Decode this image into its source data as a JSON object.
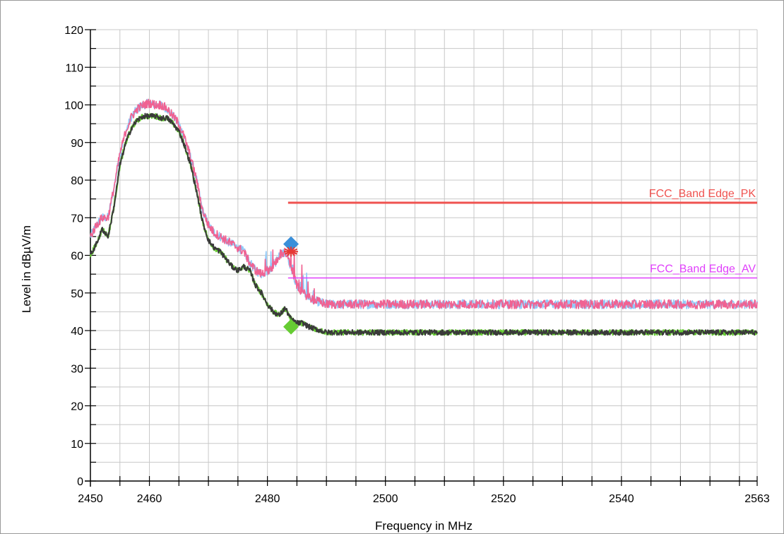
{
  "chart_data": {
    "type": "line",
    "title": "",
    "xlabel": "Frequency in MHz",
    "ylabel": "Level in dBµV/m",
    "xlim": [
      2450,
      2563
    ],
    "ylim": [
      0,
      120
    ],
    "x_ticks": [
      2450,
      2460,
      2480,
      2500,
      2520,
      2540,
      2563
    ],
    "y_ticks": [
      0,
      10,
      20,
      30,
      40,
      50,
      60,
      70,
      80,
      90,
      100,
      110,
      120
    ],
    "grid": true,
    "colors": {
      "pk_trace": "#f06292",
      "pk_trace_alt": "#90caf9",
      "av_trace": "#3a3a3a",
      "av_trace_alt": "#66cc33",
      "pk_limit": "#ef5350",
      "av_limit": "#e040fb",
      "grid": "#c8c8c8"
    },
    "limit_lines": [
      {
        "label": "FCC_Band Edge_PK",
        "x_start": 2483.5,
        "x_end": 2563,
        "y": 74,
        "color": "#ef5350"
      },
      {
        "label": "FCC_Band Edge_AV",
        "x_start": 2483.5,
        "x_end": 2563,
        "y": 54,
        "color": "#e040fb"
      }
    ],
    "markers": [
      {
        "shape": "diamond",
        "x": 2484,
        "y": 63,
        "color": "#3a8fd9"
      },
      {
        "shape": "star",
        "x": 2484,
        "y": 61,
        "color": "#e53935"
      },
      {
        "shape": "diamond",
        "x": 2484,
        "y": 41,
        "color": "#66cc33"
      }
    ],
    "series": [
      {
        "color": "#f06292",
        "noise": 1.2,
        "x": [
          2450,
          2451,
          2452,
          2453,
          2454,
          2455,
          2456,
          2457,
          2458,
          2459,
          2460,
          2461,
          2462,
          2463,
          2464,
          2465,
          2466,
          2467,
          2468,
          2469,
          2470,
          2471,
          2472,
          2473,
          2474,
          2475,
          2476,
          2477,
          2478,
          2479,
          2480,
          2481,
          2482,
          2483,
          2484,
          2485,
          2486,
          2487,
          2488,
          2489,
          2490,
          2495,
          2500,
          2510,
          2520,
          2530,
          2540,
          2550,
          2563
        ],
        "values": [
          65,
          68,
          70,
          70,
          78,
          87,
          93,
          97,
          99,
          100,
          100.5,
          100,
          100,
          99,
          97,
          95,
          91,
          86,
          80,
          72,
          68,
          66,
          65,
          64,
          63,
          62,
          61,
          58,
          56,
          55,
          56,
          57,
          60,
          61,
          57,
          52,
          50,
          49,
          48,
          47.5,
          47,
          47,
          47,
          47,
          47,
          47,
          47,
          47,
          47
        ]
      },
      {
        "color": "#3a3a3a",
        "noise": 0.7,
        "x": [
          2450,
          2451,
          2452,
          2453,
          2454,
          2455,
          2456,
          2457,
          2458,
          2459,
          2460,
          2461,
          2462,
          2463,
          2464,
          2465,
          2466,
          2467,
          2468,
          2469,
          2470,
          2471,
          2472,
          2473,
          2474,
          2475,
          2476,
          2477,
          2478,
          2479,
          2480,
          2481,
          2482,
          2483,
          2484,
          2485,
          2486,
          2487,
          2488,
          2489,
          2490,
          2495,
          2500,
          2510,
          2520,
          2530,
          2540,
          2550,
          2563
        ],
        "values": [
          60,
          63,
          67,
          65,
          73,
          84,
          90,
          94,
          96,
          97,
          97,
          97,
          96.5,
          96.5,
          95,
          93,
          89,
          84,
          77,
          69,
          64,
          62,
          61,
          59,
          57,
          56,
          57,
          56,
          52,
          50,
          47,
          45,
          44,
          46,
          43,
          42,
          42,
          41,
          40.5,
          40,
          39.5,
          39.5,
          39.5,
          39.5,
          39.5,
          39.5,
          39.5,
          39.5,
          39.5
        ]
      }
    ]
  }
}
